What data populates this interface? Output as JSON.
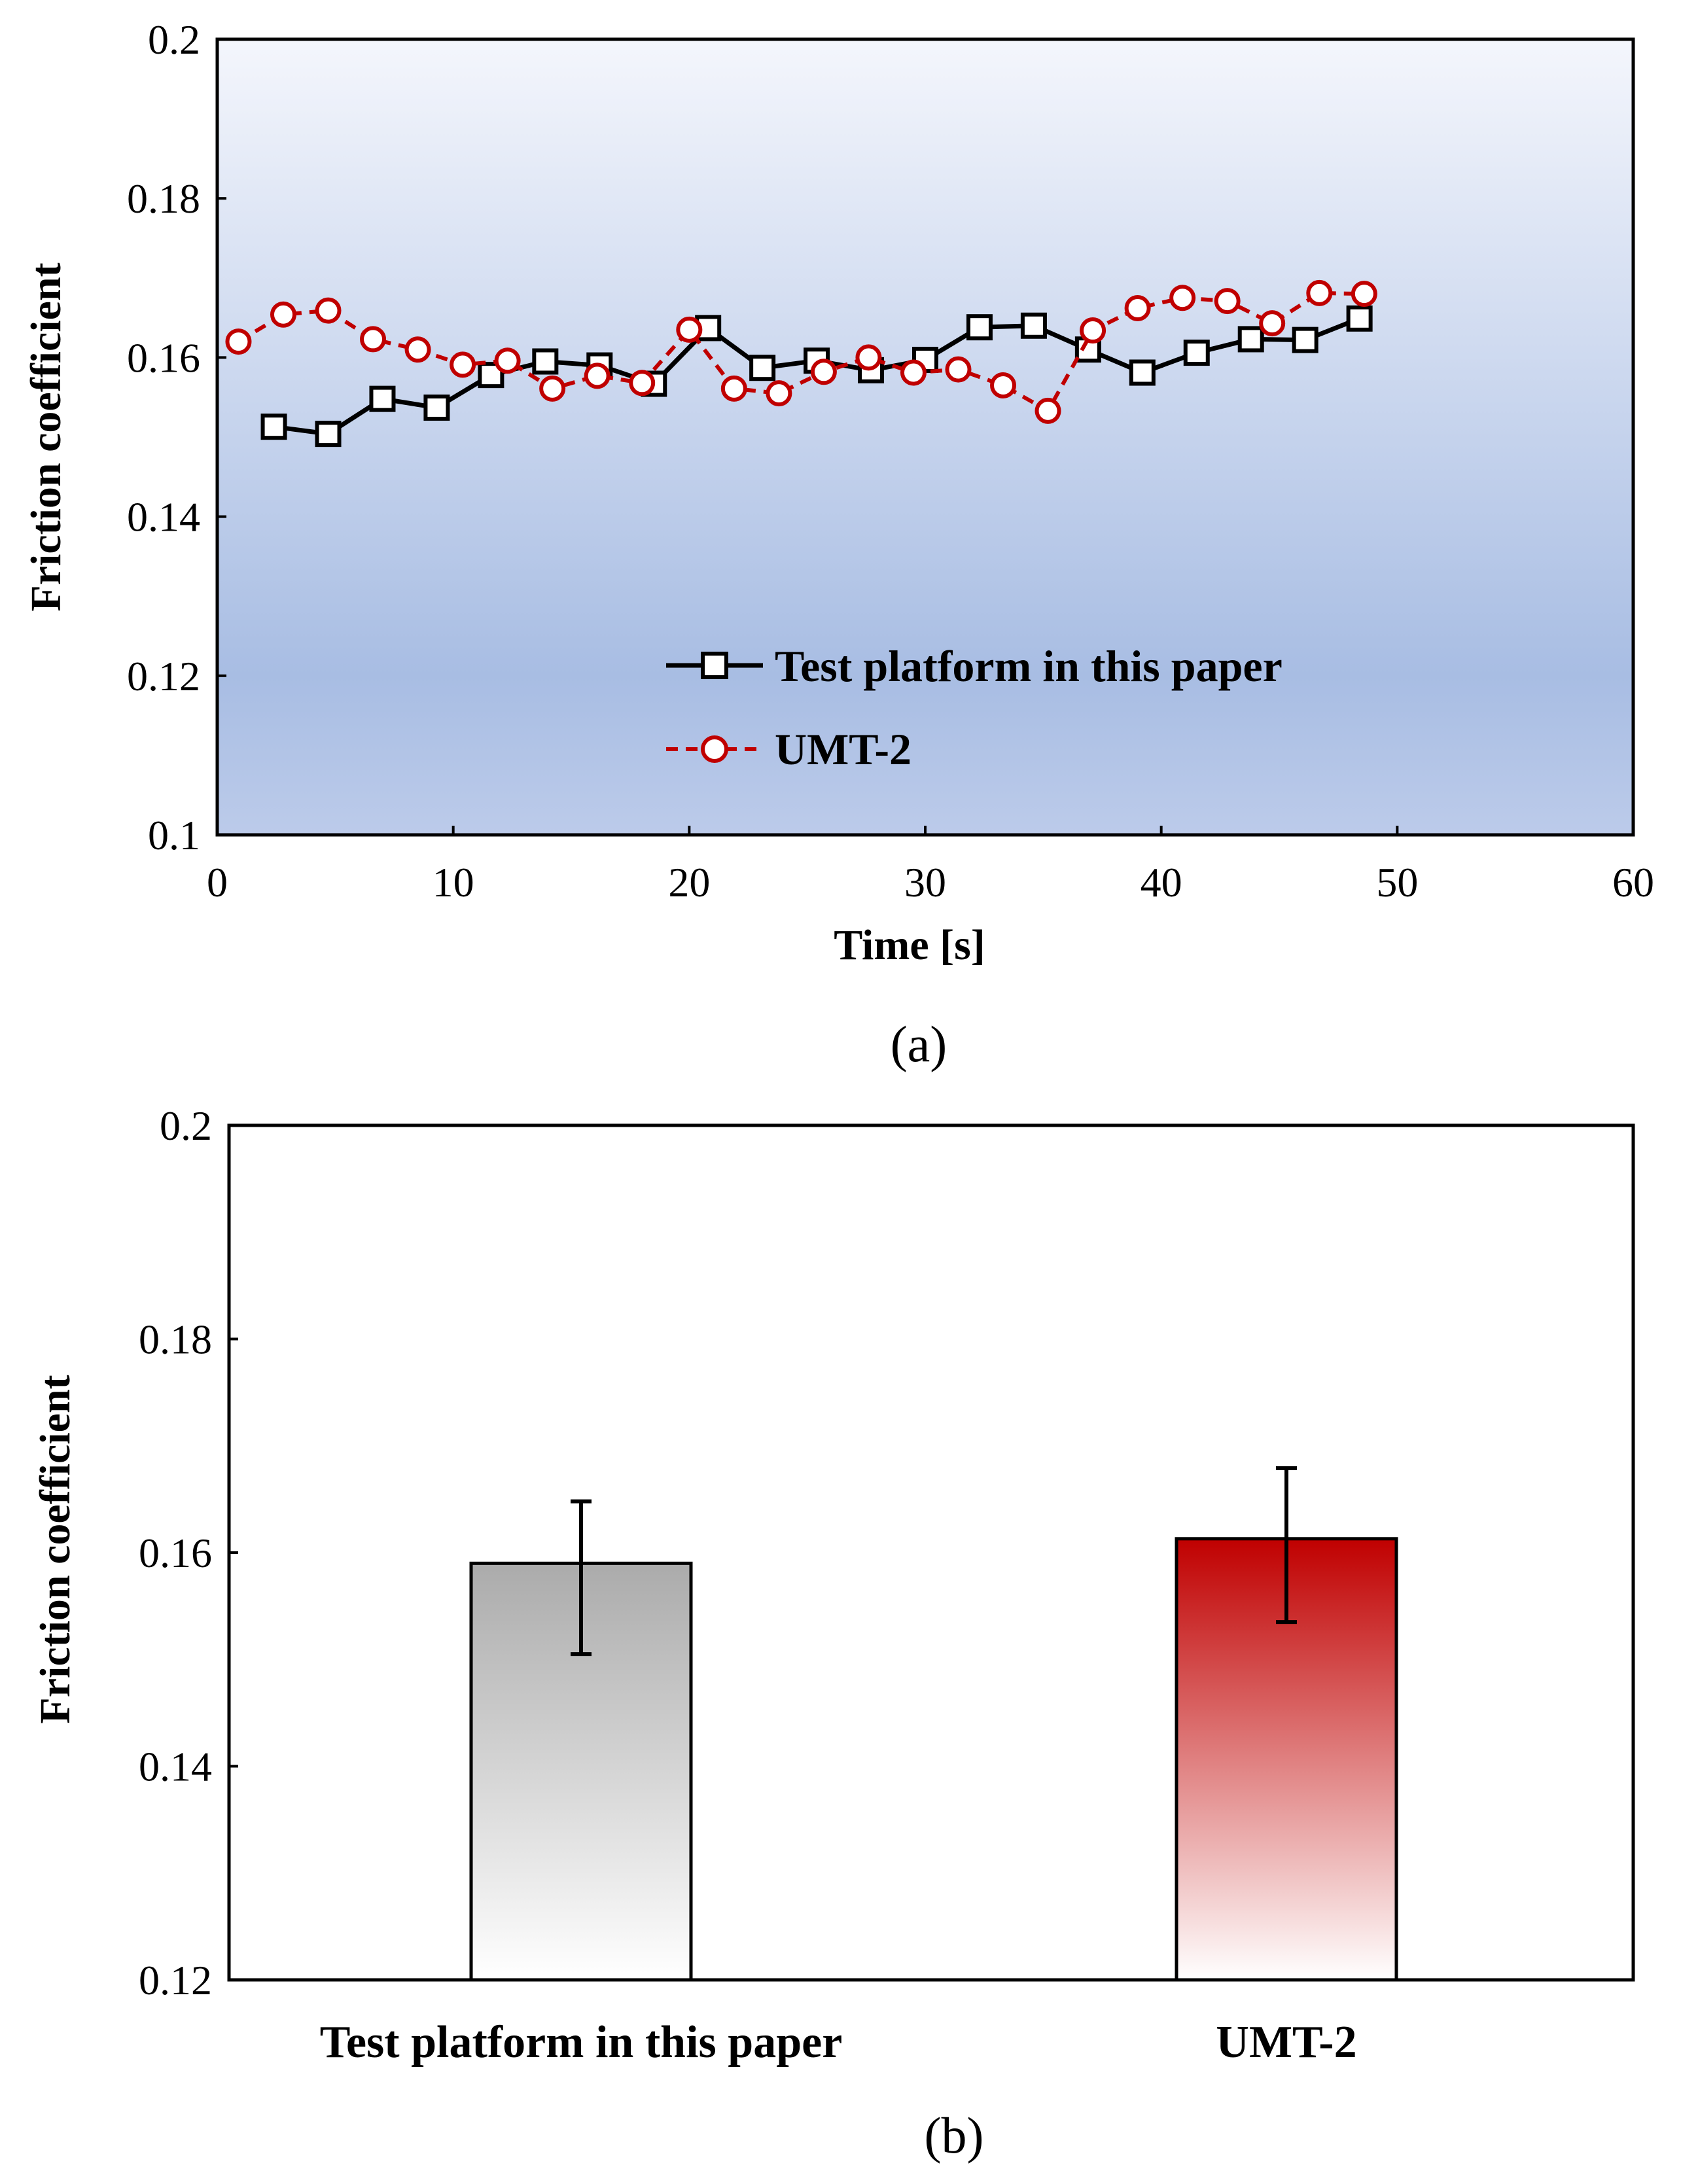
{
  "panel_a": {
    "caption": "(a)",
    "colors": {
      "test_platform": "#000000",
      "umt2": "#c00000",
      "background_top": "#f4f6fc",
      "background_mid": "#a8bde3"
    }
  },
  "panel_b": {
    "caption": "(b)",
    "colors": {
      "test_platform_top": "#ababab",
      "umt2_top": "#c00000",
      "bar_bottom": "#ffffff"
    }
  },
  "chart_data": [
    {
      "type": "line",
      "title": "",
      "xlabel": "Time [s]",
      "ylabel": "Friction coefficient",
      "xlim": [
        0,
        60
      ],
      "ylim": [
        0.1,
        0.2
      ],
      "xticks": [
        "0",
        "10",
        "20",
        "30",
        "40",
        "50",
        "60"
      ],
      "yticks": [
        "0.1",
        "0.12",
        "0.14",
        "0.16",
        "0.18",
        "0.2"
      ],
      "legend_position": "bottom-center",
      "series": [
        {
          "name": "Test platform in this paper",
          "marker": "square",
          "line": "solid",
          "x": [
            2.4,
            4.7,
            7.0,
            9.3,
            11.6,
            13.9,
            16.2,
            18.5,
            20.8,
            23.1,
            25.4,
            27.7,
            30.0,
            32.3,
            34.6,
            36.9,
            39.2,
            41.5,
            43.8,
            46.1,
            48.4
          ],
          "y": [
            0.1513,
            0.1504,
            0.1548,
            0.1537,
            0.1578,
            0.1595,
            0.159,
            0.1567,
            0.1637,
            0.1587,
            0.1596,
            0.1584,
            0.1597,
            0.1638,
            0.164,
            0.161,
            0.1581,
            0.1606,
            0.1623,
            0.1622,
            0.1649
          ]
        },
        {
          "name": "UMT-2",
          "marker": "circle",
          "line": "dashed",
          "x": [
            0.9,
            2.8,
            4.7,
            6.6,
            8.5,
            10.4,
            12.3,
            14.2,
            16.1,
            18.0,
            20.0,
            21.9,
            23.8,
            25.7,
            27.6,
            29.5,
            31.4,
            33.3,
            35.2,
            37.1,
            39.0,
            40.9,
            42.8,
            44.7,
            46.7,
            48.6
          ],
          "y": [
            0.162,
            0.1654,
            0.1659,
            0.1623,
            0.161,
            0.1591,
            0.1596,
            0.1561,
            0.1577,
            0.1568,
            0.1635,
            0.1561,
            0.1555,
            0.1582,
            0.16,
            0.1581,
            0.1585,
            0.1565,
            0.1533,
            0.1634,
            0.1662,
            0.1675,
            0.1671,
            0.1643,
            0.1681,
            0.168
          ]
        }
      ]
    },
    {
      "type": "bar",
      "title": "",
      "xlabel": "",
      "ylabel": "Friction coefficient",
      "ylim": [
        0.12,
        0.2
      ],
      "yticks": [
        "0.12",
        "0.14",
        "0.16",
        "0.18",
        "0.2"
      ],
      "categories": [
        "Test platform in this paper",
        "UMT-2"
      ],
      "values": [
        0.159,
        0.1613
      ],
      "error_low": [
        0.1505,
        0.1535
      ],
      "error_high": [
        0.1648,
        0.1679
      ]
    }
  ]
}
